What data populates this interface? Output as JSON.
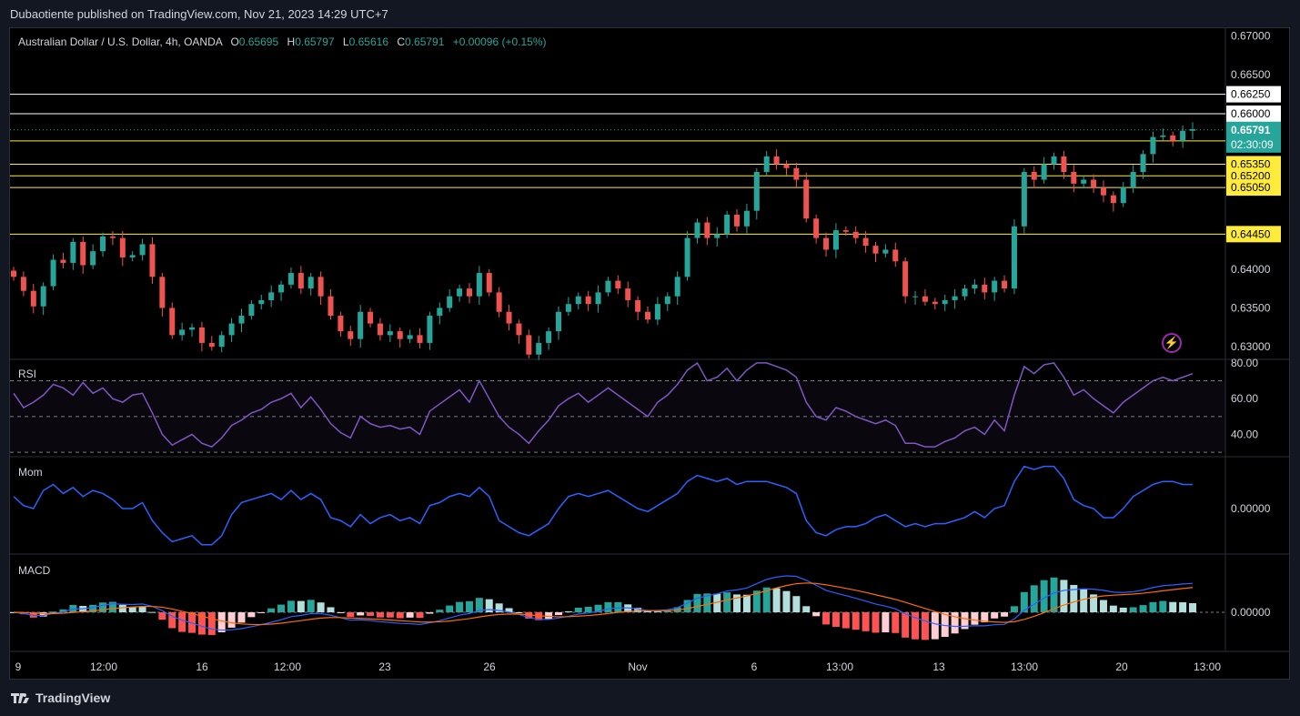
{
  "header": {
    "publisher_text": "Dubaotiente published on TradingView.com, Nov 21, 2023 14:29 UTC+7"
  },
  "footer": {
    "brand": "TradingView"
  },
  "colors": {
    "up": "#26a69a",
    "down": "#ef5350",
    "rsi": "#7e57c2",
    "mom": "#2962ff",
    "macd": "#2962ff",
    "signal": "#ff6d00",
    "hline_white": "#ffffff",
    "hline_yellow": "#ffeb3b"
  },
  "legend": {
    "symbol": "Australian Dollar / U.S. Dollar, 4h, OANDA",
    "o_label": "O",
    "o_value": "0.65695",
    "h_label": "H",
    "h_value": "0.65797",
    "l_label": "L",
    "l_value": "0.65616",
    "c_label": "C",
    "c_value": "0.65791",
    "change": "+0.00096 (+0.15%)"
  },
  "panes": {
    "rsi_title": "RSI",
    "mom_title": "Mom",
    "macd_title": "MACD"
  },
  "chart_data": {
    "type": "candlestick",
    "price_axis": {
      "ticks": [
        "0.67000",
        "0.66500",
        "0.64000",
        "0.63500",
        "0.63000"
      ],
      "ylim": [
        0.6285,
        0.671
      ]
    },
    "horizontal_levels": [
      {
        "price": 0.6625,
        "label": "0.66250",
        "color": "white"
      },
      {
        "price": 0.66,
        "label": "0.66000",
        "color": "white"
      },
      {
        "price": 0.6565,
        "label": "0.65650",
        "color": "yellow"
      },
      {
        "price": 0.6535,
        "label": "0.65350",
        "color": "yellow"
      },
      {
        "price": 0.652,
        "label": "0.65200",
        "color": "yellow"
      },
      {
        "price": 0.6505,
        "label": "0.65050",
        "color": "yellow"
      },
      {
        "price": 0.6445,
        "label": "0.64450",
        "color": "yellow"
      }
    ],
    "last_price": {
      "label": "0.65791",
      "countdown": "02:30:09",
      "value": 0.65791
    },
    "x_ticks": [
      "9",
      "12:00",
      "16",
      "12:00",
      "23",
      "26",
      "Nov",
      "6",
      "13:00",
      "13",
      "13:00",
      "20",
      "13:00"
    ],
    "close_path": [
      0.639,
      0.6372,
      0.6352,
      0.6378,
      0.6412,
      0.6408,
      0.6435,
      0.6405,
      0.6423,
      0.6442,
      0.644,
      0.6415,
      0.6418,
      0.6432,
      0.639,
      0.635,
      0.6315,
      0.6322,
      0.6325,
      0.6305,
      0.63,
      0.6315,
      0.633,
      0.634,
      0.6355,
      0.636,
      0.637,
      0.638,
      0.6395,
      0.6375,
      0.639,
      0.6365,
      0.634,
      0.632,
      0.631,
      0.6345,
      0.633,
      0.6315,
      0.632,
      0.631,
      0.6315,
      0.6305,
      0.634,
      0.635,
      0.6365,
      0.6375,
      0.6365,
      0.6395,
      0.637,
      0.6345,
      0.633,
      0.6315,
      0.629,
      0.6305,
      0.632,
      0.6345,
      0.6355,
      0.6365,
      0.6355,
      0.637,
      0.6385,
      0.6375,
      0.636,
      0.6345,
      0.6335,
      0.6355,
      0.6365,
      0.639,
      0.644,
      0.646,
      0.644,
      0.6445,
      0.647,
      0.6455,
      0.6475,
      0.6525,
      0.6545,
      0.6535,
      0.653,
      0.6515,
      0.6465,
      0.644,
      0.6425,
      0.645,
      0.6448,
      0.644,
      0.643,
      0.642,
      0.6425,
      0.641,
      0.6365,
      0.6365,
      0.6358,
      0.6355,
      0.636,
      0.6365,
      0.6375,
      0.638,
      0.637,
      0.6385,
      0.6375,
      0.6455,
      0.6525,
      0.6515,
      0.6535,
      0.6545,
      0.6525,
      0.651,
      0.6515,
      0.6505,
      0.6495,
      0.6485,
      0.6505,
      0.6525,
      0.6548,
      0.657,
      0.6572,
      0.6565,
      0.6578,
      0.658
    ],
    "rsi": {
      "levels": [
        70,
        50,
        30
      ],
      "ticks": [
        "80.00",
        "60.00",
        "40.00"
      ],
      "ylim": [
        28,
        82
      ],
      "values": [
        63,
        55,
        58,
        62,
        68,
        66,
        62,
        69,
        63,
        66,
        60,
        58,
        62,
        63,
        52,
        40,
        34,
        37,
        40,
        35,
        33,
        38,
        45,
        48,
        52,
        54,
        58,
        60,
        63,
        55,
        61,
        54,
        46,
        41,
        38,
        50,
        46,
        44,
        45,
        43,
        44,
        40,
        53,
        57,
        61,
        65,
        58,
        70,
        60,
        50,
        44,
        40,
        35,
        42,
        48,
        56,
        60,
        63,
        58,
        62,
        66,
        62,
        58,
        54,
        50,
        58,
        62,
        68,
        76,
        80,
        70,
        72,
        77,
        70,
        76,
        80,
        80,
        78,
        76,
        72,
        58,
        50,
        48,
        55,
        53,
        50,
        48,
        46,
        48,
        45,
        35,
        35,
        33,
        33,
        36,
        38,
        42,
        44,
        40,
        48,
        42,
        62,
        78,
        74,
        79,
        80,
        72,
        62,
        65,
        60,
        56,
        52,
        58,
        62,
        66,
        70,
        72,
        70,
        72,
        74
      ]
    },
    "mom": {
      "ticks": [
        "0.00000"
      ],
      "zero": 0,
      "values": [
        0.004,
        0.001,
        0.0,
        0.006,
        0.008,
        0.005,
        0.007,
        0.004,
        0.006,
        0.005,
        0.003,
        0.0,
        0.0,
        0.002,
        -0.004,
        -0.008,
        -0.011,
        -0.01,
        -0.009,
        -0.012,
        -0.012,
        -0.009,
        -0.002,
        0.002,
        0.003,
        0.004,
        0.005,
        0.003,
        0.006,
        0.003,
        0.005,
        0.003,
        -0.003,
        -0.004,
        -0.006,
        -0.002,
        -0.005,
        -0.003,
        -0.002,
        -0.004,
        -0.003,
        -0.005,
        0.001,
        0.002,
        0.004,
        0.005,
        0.004,
        0.007,
        0.004,
        -0.004,
        -0.006,
        -0.008,
        -0.009,
        -0.007,
        -0.005,
        0.0,
        0.004,
        0.005,
        0.004,
        0.005,
        0.006,
        0.004,
        0.002,
        0.0,
        -0.001,
        0.001,
        0.003,
        0.005,
        0.009,
        0.011,
        0.01,
        0.009,
        0.01,
        0.008,
        0.009,
        0.009,
        0.009,
        0.008,
        0.007,
        0.005,
        -0.004,
        -0.008,
        -0.009,
        -0.007,
        -0.006,
        -0.006,
        -0.005,
        -0.003,
        -0.002,
        -0.004,
        -0.006,
        -0.005,
        -0.006,
        -0.005,
        -0.005,
        -0.004,
        -0.003,
        -0.001,
        -0.003,
        0.0,
        0.001,
        0.009,
        0.014,
        0.013,
        0.014,
        0.014,
        0.01,
        0.003,
        0.001,
        0.0,
        -0.003,
        -0.003,
        0.0,
        0.004,
        0.006,
        0.008,
        0.009,
        0.009,
        0.008,
        0.008
      ]
    },
    "macd": {
      "ticks": [
        "0.00000"
      ]
    }
  }
}
